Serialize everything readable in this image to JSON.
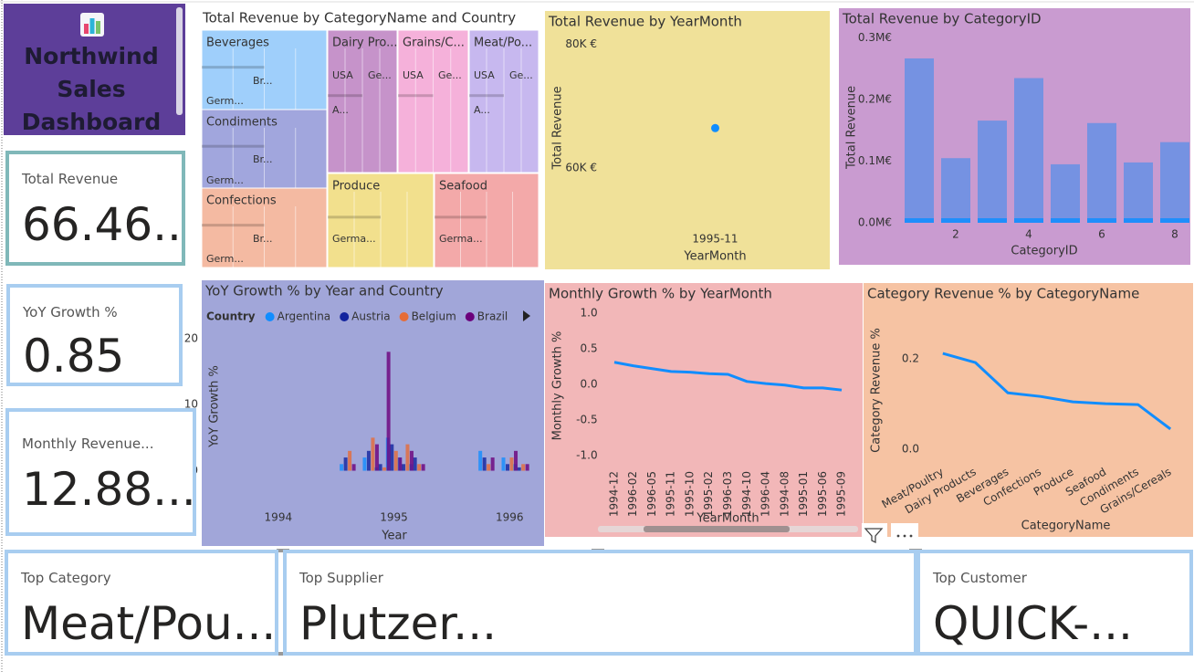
{
  "header": {
    "title": "Northwind Sales Dashboard"
  },
  "cards": [
    {
      "label": "Total Revenue",
      "value": "66.46..."
    },
    {
      "label": "YoY Growth %",
      "value": "0.85"
    },
    {
      "label": "Monthly Revenue...",
      "value": "12.88..."
    },
    {
      "label": "Top Category",
      "value": "Meat/Pou..."
    },
    {
      "label": "Top Supplier",
      "value": "Plutzer..."
    },
    {
      "label": "Top Customer",
      "value": "QUICK-..."
    }
  ],
  "chart_data": [
    {
      "type": "treemap",
      "title": "Total Revenue by CategoryName and Country",
      "categories": [
        "Beverages",
        "Condiments",
        "Confections",
        "Dairy Pro...",
        "Grains/C...",
        "Meat/Po...",
        "Produce",
        "Seafood"
      ],
      "values": [
        0.267,
        0.105,
        0.166,
        0.235,
        0.095,
        0.162,
        0.098,
        0.131
      ],
      "country_labels": [
        [
          "Germ...",
          "Br..."
        ],
        [
          "Br...",
          "Germ..."
        ],
        [
          "Br...",
          "Germ..."
        ],
        [
          "USA",
          "Ge...",
          "A..."
        ],
        [
          "USA",
          "Ge..."
        ],
        [
          "USA",
          "Ge...",
          "A..."
        ],
        [
          "Germa..."
        ],
        [
          "Germa..."
        ]
      ],
      "colors": [
        "#9fcffb",
        "#a1a6dd",
        "#f4baa2",
        "#c693ca",
        "#f5b1da",
        "#c7b8ef",
        "#f2e08d",
        "#f3a9a9"
      ]
    },
    {
      "type": "scatter",
      "title": "Total Revenue by YearMonth",
      "categories": [
        "1995-11"
      ],
      "values": [
        66460
      ],
      "color": "#118dff",
      "x_label": "YearMonth",
      "y_label": "Total Revenue",
      "ylim": [
        51000,
        82000
      ],
      "yticks": [
        {
          "value": 60000,
          "label": "60K €"
        },
        {
          "value": 80000,
          "label": "80K €"
        }
      ],
      "grid": false
    },
    {
      "type": "bar",
      "title": "Total Revenue by CategoryID",
      "x": [
        1,
        2,
        3,
        4,
        5,
        6,
        7,
        8
      ],
      "values": [
        0.267,
        0.105,
        0.166,
        0.235,
        0.095,
        0.162,
        0.098,
        0.131
      ],
      "color": "#7592e2",
      "x_label": "CategoryID",
      "y_label": "Total Revenue",
      "xlim": [
        0.45,
        8.4
      ],
      "xticks": [
        2,
        4,
        6,
        8
      ],
      "ylim": [
        0,
        0.31
      ],
      "yticks": [
        {
          "value": 0,
          "label": "0.0M€"
        },
        {
          "value": 0.1,
          "label": "0.1M€"
        },
        {
          "value": 0.2,
          "label": "0.2M€"
        },
        {
          "value": 0.3,
          "label": "0.3M€"
        }
      ],
      "grid": false
    },
    {
      "type": "grouped_bar",
      "title": "YoY Growth % by Year and Country",
      "legend_title": "Country",
      "x": [
        1994.6,
        1994.8,
        1994.9,
        1995.0,
        1995.1,
        1995.2,
        1995.8,
        1996.0,
        1996.1
      ],
      "series": [
        {
          "name": "Argentina",
          "color": "#118dff",
          "values": [
            1,
            2,
            0.5,
            5,
            2,
            1,
            3,
            2,
            1
          ]
        },
        {
          "name": "Austria",
          "color": "#12239e",
          "values": [
            2,
            3,
            1,
            4,
            1,
            2,
            2,
            1,
            0.5
          ]
        },
        {
          "name": "Belgium",
          "color": "#e66c37",
          "values": [
            3,
            5,
            0.5,
            3,
            4,
            1,
            1,
            2,
            1
          ]
        },
        {
          "name": "Brazil",
          "color": "#6b007b",
          "values": [
            1,
            4,
            18,
            2,
            3,
            1,
            2,
            3,
            1
          ]
        }
      ],
      "x_label": "Year",
      "y_label": "YoY Growth %",
      "xlim": [
        1993.37,
        1996.29
      ],
      "xticks": [
        1994,
        1995,
        1996
      ],
      "ylim": [
        -2,
        21.5
      ],
      "yticks": [
        0,
        10,
        20
      ],
      "grid": false
    },
    {
      "type": "line",
      "title": "Monthly Growth % by YearMonth",
      "categories": [
        "1994-12",
        "1996-02",
        "1996-05",
        "1995-11",
        "1995-10",
        "1995-02",
        "1996-03",
        "1994-10",
        "1996-04",
        "1994-08",
        "1995-01",
        "1995-06",
        "1995-09"
      ],
      "values": [
        0.31,
        0.26,
        0.22,
        0.18,
        0.17,
        0.15,
        0.14,
        0.04,
        0.01,
        -0.01,
        -0.05,
        -0.05,
        -0.08
      ],
      "color": "#118dff",
      "x_label": "YearMonth",
      "y_label": "Monthly Growth %",
      "ylim": [
        -1.14,
        1.1
      ],
      "yticks": [
        {
          "value": -1,
          "label": "-1.0"
        },
        -0.5,
        {
          "value": 0,
          "label": "0.0"
        },
        0.5,
        {
          "value": 1,
          "label": "1.0"
        }
      ],
      "grid": false
    },
    {
      "type": "line",
      "title": "Category Revenue % by CategoryName",
      "categories": [
        "Meat/Poultry",
        "Dairy Products",
        "Beverages",
        "Confections",
        "Produce",
        "Seafood",
        "Condiments",
        "Grains/Cereals"
      ],
      "values": [
        0.212,
        0.192,
        0.125,
        0.117,
        0.105,
        0.101,
        0.099,
        0.045
      ],
      "color": "#118dff",
      "x_label": "CategoryName",
      "y_label": "Category Revenue %",
      "ylim": [
        -0.036,
        0.297
      ],
      "yticks": [
        {
          "value": 0,
          "label": "0.0"
        },
        0.2
      ],
      "grid": false
    }
  ]
}
